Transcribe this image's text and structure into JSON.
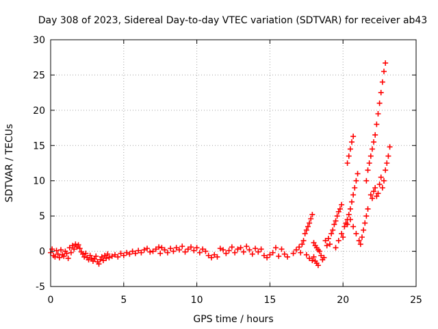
{
  "chart_data": {
    "type": "scatter",
    "title": "Day 308 of 2023, Sidereal Day-to-day VTEC variation (SDTVAR) for receiver ab43",
    "xlabel": "GPS time / hours",
    "ylabel": "SDTVAR / TECUs",
    "xlim": [
      0,
      25
    ],
    "ylim": [
      -5,
      30
    ],
    "x_ticks": [
      0,
      5,
      10,
      15,
      20,
      25
    ],
    "y_ticks": [
      -5,
      0,
      5,
      10,
      15,
      20,
      25,
      30
    ],
    "grid": true,
    "marker": "+",
    "color": "#ff0000",
    "series": [
      {
        "name": "SDTVAR",
        "points": [
          [
            0.0,
            -0.2
          ],
          [
            0.1,
            0.3
          ],
          [
            0.2,
            -0.6
          ],
          [
            0.3,
            -0.8
          ],
          [
            0.4,
            0.1
          ],
          [
            0.5,
            -0.4
          ],
          [
            0.6,
            -0.9
          ],
          [
            0.7,
            0.2
          ],
          [
            0.8,
            -0.5
          ],
          [
            0.9,
            -0.7
          ],
          [
            1.0,
            0.0
          ],
          [
            1.1,
            -0.3
          ],
          [
            1.2,
            -1.0
          ],
          [
            1.3,
            0.5
          ],
          [
            1.4,
            -0.2
          ],
          [
            1.5,
            0.8
          ],
          [
            1.6,
            0.3
          ],
          [
            1.7,
            1.0
          ],
          [
            1.8,
            0.6
          ],
          [
            1.9,
            0.9
          ],
          [
            2.0,
            0.4
          ],
          [
            2.1,
            -0.1
          ],
          [
            2.2,
            -0.4
          ],
          [
            2.3,
            -0.8
          ],
          [
            2.4,
            -0.3
          ],
          [
            2.5,
            -0.9
          ],
          [
            2.6,
            -1.2
          ],
          [
            2.7,
            -0.6
          ],
          [
            2.8,
            -1.0
          ],
          [
            2.9,
            -1.4
          ],
          [
            3.0,
            -1.1
          ],
          [
            3.1,
            -0.7
          ],
          [
            3.2,
            -1.5
          ],
          [
            3.3,
            -1.8
          ],
          [
            3.4,
            -1.2
          ],
          [
            3.5,
            -0.8
          ],
          [
            3.6,
            -1.3
          ],
          [
            3.7,
            -0.6
          ],
          [
            3.8,
            -1.0
          ],
          [
            3.9,
            -0.4
          ],
          [
            4.0,
            -0.9
          ],
          [
            4.2,
            -0.7
          ],
          [
            4.4,
            -0.5
          ],
          [
            4.6,
            -0.8
          ],
          [
            4.8,
            -0.3
          ],
          [
            5.0,
            -0.6
          ],
          [
            5.2,
            -0.2
          ],
          [
            5.4,
            -0.4
          ],
          [
            5.6,
            0.0
          ],
          [
            5.8,
            -0.3
          ],
          [
            6.0,
            0.1
          ],
          [
            6.2,
            -0.2
          ],
          [
            6.4,
            0.2
          ],
          [
            6.6,
            0.4
          ],
          [
            6.8,
            -0.1
          ],
          [
            7.0,
            0.0
          ],
          [
            7.2,
            0.3
          ],
          [
            7.4,
            0.6
          ],
          [
            7.5,
            -0.3
          ],
          [
            7.6,
            0.5
          ],
          [
            7.8,
            0.2
          ],
          [
            8.0,
            -0.2
          ],
          [
            8.2,
            0.4
          ],
          [
            8.4,
            0.0
          ],
          [
            8.6,
            0.5
          ],
          [
            8.8,
            0.2
          ],
          [
            9.0,
            0.7
          ],
          [
            9.2,
            -0.1
          ],
          [
            9.4,
            0.3
          ],
          [
            9.6,
            0.6
          ],
          [
            9.8,
            0.1
          ],
          [
            10.0,
            0.5
          ],
          [
            10.2,
            -0.2
          ],
          [
            10.4,
            0.3
          ],
          [
            10.6,
            0.0
          ],
          [
            10.8,
            -0.6
          ],
          [
            11.0,
            -0.9
          ],
          [
            11.2,
            -0.5
          ],
          [
            11.4,
            -0.8
          ],
          [
            11.6,
            0.4
          ],
          [
            11.8,
            0.2
          ],
          [
            12.0,
            -0.3
          ],
          [
            12.2,
            0.1
          ],
          [
            12.4,
            0.6
          ],
          [
            12.6,
            -0.2
          ],
          [
            12.8,
            0.3
          ],
          [
            13.0,
            0.5
          ],
          [
            13.2,
            -0.1
          ],
          [
            13.4,
            0.7
          ],
          [
            13.6,
            0.2
          ],
          [
            13.8,
            -0.4
          ],
          [
            14.0,
            0.4
          ],
          [
            14.2,
            -0.1
          ],
          [
            14.4,
            0.3
          ],
          [
            14.6,
            -0.6
          ],
          [
            14.8,
            -0.9
          ],
          [
            15.0,
            -0.5
          ],
          [
            15.2,
            -0.2
          ],
          [
            15.4,
            0.5
          ],
          [
            15.6,
            -0.7
          ],
          [
            15.8,
            0.3
          ],
          [
            16.0,
            -0.4
          ],
          [
            16.2,
            -0.8
          ],
          [
            16.6,
            -0.3
          ],
          [
            16.8,
            0.2
          ],
          [
            17.0,
            0.6
          ],
          [
            17.1,
            -0.2
          ],
          [
            17.2,
            1.0
          ],
          [
            17.3,
            1.5
          ],
          [
            17.4,
            2.5
          ],
          [
            17.5,
            3.0
          ],
          [
            17.6,
            3.5
          ],
          [
            17.7,
            4.0
          ],
          [
            17.8,
            4.6
          ],
          [
            17.9,
            5.2
          ],
          [
            17.5,
            -0.5
          ],
          [
            17.7,
            -1.0
          ],
          [
            17.9,
            -1.3
          ],
          [
            18.0,
            -0.8
          ],
          [
            18.1,
            -1.4
          ],
          [
            18.2,
            -1.7
          ],
          [
            18.3,
            -2.0
          ],
          [
            18.0,
            1.2
          ],
          [
            18.1,
            0.8
          ],
          [
            18.2,
            0.5
          ],
          [
            18.3,
            0.2
          ],
          [
            18.4,
            0.0
          ],
          [
            18.5,
            -0.6
          ],
          [
            18.6,
            -1.2
          ],
          [
            18.7,
            -0.9
          ],
          [
            18.8,
            1.5
          ],
          [
            18.9,
            0.8
          ],
          [
            19.0,
            1.8
          ],
          [
            19.1,
            1.0
          ],
          [
            19.2,
            2.5
          ],
          [
            19.3,
            3.0
          ],
          [
            19.4,
            3.8
          ],
          [
            19.5,
            4.3
          ],
          [
            19.6,
            5.0
          ],
          [
            19.7,
            5.6
          ],
          [
            19.8,
            6.0
          ],
          [
            19.9,
            6.6
          ],
          [
            19.9,
            2.5
          ],
          [
            19.7,
            1.5
          ],
          [
            19.5,
            0.5
          ],
          [
            20.0,
            2.0
          ],
          [
            20.1,
            3.5
          ],
          [
            20.2,
            4.0
          ],
          [
            20.3,
            4.5
          ],
          [
            20.4,
            5.2
          ],
          [
            20.5,
            6.0
          ],
          [
            20.6,
            7.0
          ],
          [
            20.7,
            8.0
          ],
          [
            20.8,
            9.0
          ],
          [
            20.9,
            10.0
          ],
          [
            21.0,
            11.0
          ],
          [
            20.3,
            12.5
          ],
          [
            20.4,
            13.5
          ],
          [
            20.5,
            14.5
          ],
          [
            20.6,
            15.5
          ],
          [
            20.7,
            16.3
          ],
          [
            20.3,
            3.8
          ],
          [
            20.5,
            4.5
          ],
          [
            20.7,
            3.5
          ],
          [
            20.9,
            2.5
          ],
          [
            21.1,
            1.5
          ],
          [
            21.2,
            1.0
          ],
          [
            21.3,
            2.0
          ],
          [
            21.4,
            3.0
          ],
          [
            21.5,
            4.0
          ],
          [
            21.6,
            5.0
          ],
          [
            21.7,
            6.0
          ],
          [
            21.6,
            10.0
          ],
          [
            21.7,
            11.5
          ],
          [
            21.8,
            12.5
          ],
          [
            21.9,
            13.5
          ],
          [
            22.0,
            14.5
          ],
          [
            22.1,
            15.5
          ],
          [
            22.2,
            16.5
          ],
          [
            22.3,
            18.0
          ],
          [
            22.4,
            19.5
          ],
          [
            22.5,
            21.0
          ],
          [
            22.6,
            22.5
          ],
          [
            22.7,
            24.0
          ],
          [
            22.8,
            25.5
          ],
          [
            22.9,
            26.7
          ],
          [
            21.9,
            8.0
          ],
          [
            22.0,
            7.5
          ],
          [
            22.1,
            8.5
          ],
          [
            22.2,
            9.0
          ],
          [
            22.3,
            7.8
          ],
          [
            22.4,
            8.2
          ],
          [
            22.5,
            9.5
          ],
          [
            22.6,
            10.5
          ],
          [
            22.7,
            9.0
          ],
          [
            22.8,
            10.0
          ],
          [
            22.9,
            11.5
          ],
          [
            23.0,
            12.5
          ],
          [
            23.1,
            13.5
          ],
          [
            23.2,
            14.8
          ]
        ]
      }
    ]
  }
}
